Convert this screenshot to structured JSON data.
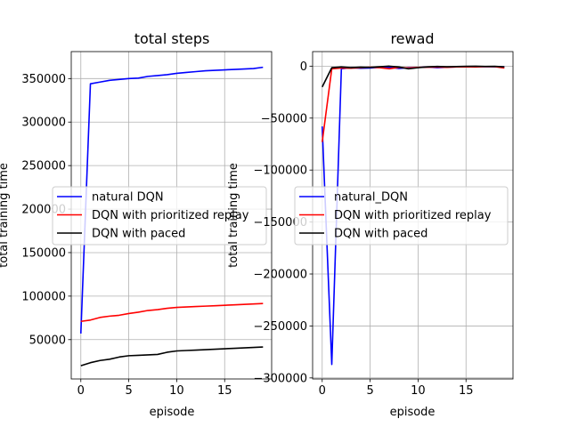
{
  "chart_data": [
    {
      "type": "line",
      "title": "total steps",
      "xlabel": "episode",
      "ylabel": "total training time",
      "x": [
        0,
        1,
        2,
        3,
        4,
        5,
        6,
        7,
        8,
        9,
        10,
        11,
        12,
        13,
        14,
        15,
        16,
        17,
        18,
        19
      ],
      "xlim": [
        -1.0,
        19.9
      ],
      "ylim": [
        4800,
        381000
      ],
      "xticks": [
        0,
        5,
        10,
        15
      ],
      "yticks": [
        50000,
        100000,
        150000,
        200000,
        250000,
        300000,
        350000
      ],
      "grid": true,
      "legend_position": "center-left",
      "series": [
        {
          "name": "natural DQN",
          "color": "#0000ff",
          "values": [
            57000,
            344000,
            346000,
            348000,
            349000,
            350000,
            350500,
            352500,
            353500,
            354500,
            356000,
            357000,
            358000,
            359000,
            359500,
            360000,
            360500,
            361000,
            361500,
            363000
          ]
        },
        {
          "name": "DQN with prioritized replay",
          "color": "#ff0000",
          "values": [
            71000,
            72500,
            75500,
            77000,
            78000,
            80000,
            81500,
            83500,
            84500,
            86000,
            87000,
            87500,
            88000,
            88500,
            89000,
            89500,
            90000,
            90500,
            91000,
            91500
          ]
        },
        {
          "name": "DQN with paced",
          "color": "#000000",
          "values": [
            20000,
            23500,
            26000,
            27500,
            30000,
            31500,
            32000,
            32500,
            33000,
            35500,
            37000,
            37500,
            38000,
            38500,
            39000,
            39500,
            40000,
            40500,
            41000,
            41500
          ]
        }
      ]
    },
    {
      "type": "line",
      "title": "rewad",
      "xlabel": "episode",
      "ylabel": "total training time",
      "x": [
        0,
        1,
        2,
        3,
        4,
        5,
        6,
        7,
        8,
        9,
        10,
        11,
        12,
        13,
        14,
        15,
        16,
        17,
        18,
        19
      ],
      "xlim": [
        -1.0,
        19.9
      ],
      "ylim": [
        -301000,
        14000
      ],
      "xticks": [
        0,
        5,
        10,
        15
      ],
      "yticks": [
        0,
        -50000,
        -100000,
        -150000,
        -200000,
        -250000,
        -300000
      ],
      "grid": true,
      "legend_position": "center-left",
      "series": [
        {
          "name": "natural_DQN",
          "color": "#0000ff",
          "values": [
            -58000,
            -287000,
            -2500,
            -1500,
            -2000,
            -1800,
            -1200,
            -1000,
            -2200,
            -1500,
            -1300,
            -800,
            -1500,
            -1000,
            -700,
            -600,
            -500,
            -400,
            -600,
            -700
          ]
        },
        {
          "name": "DQN with prioritized replay",
          "color": "#ff0000",
          "values": [
            -73000,
            -2500,
            -1800,
            -2000,
            -1500,
            -1000,
            -1500,
            -2500,
            -1200,
            -1800,
            -1200,
            -1000,
            -800,
            -1200,
            -700,
            -600,
            -800,
            -400,
            -500,
            -1800
          ]
        },
        {
          "name": "DQN with paced",
          "color": "#000000",
          "values": [
            -20000,
            -1500,
            -800,
            -1500,
            -1000,
            -1200,
            -600,
            0,
            -800,
            -2500,
            -1500,
            -700,
            -300,
            -600,
            -400,
            -200,
            -100,
            -300,
            -200,
            -700
          ]
        }
      ]
    }
  ]
}
